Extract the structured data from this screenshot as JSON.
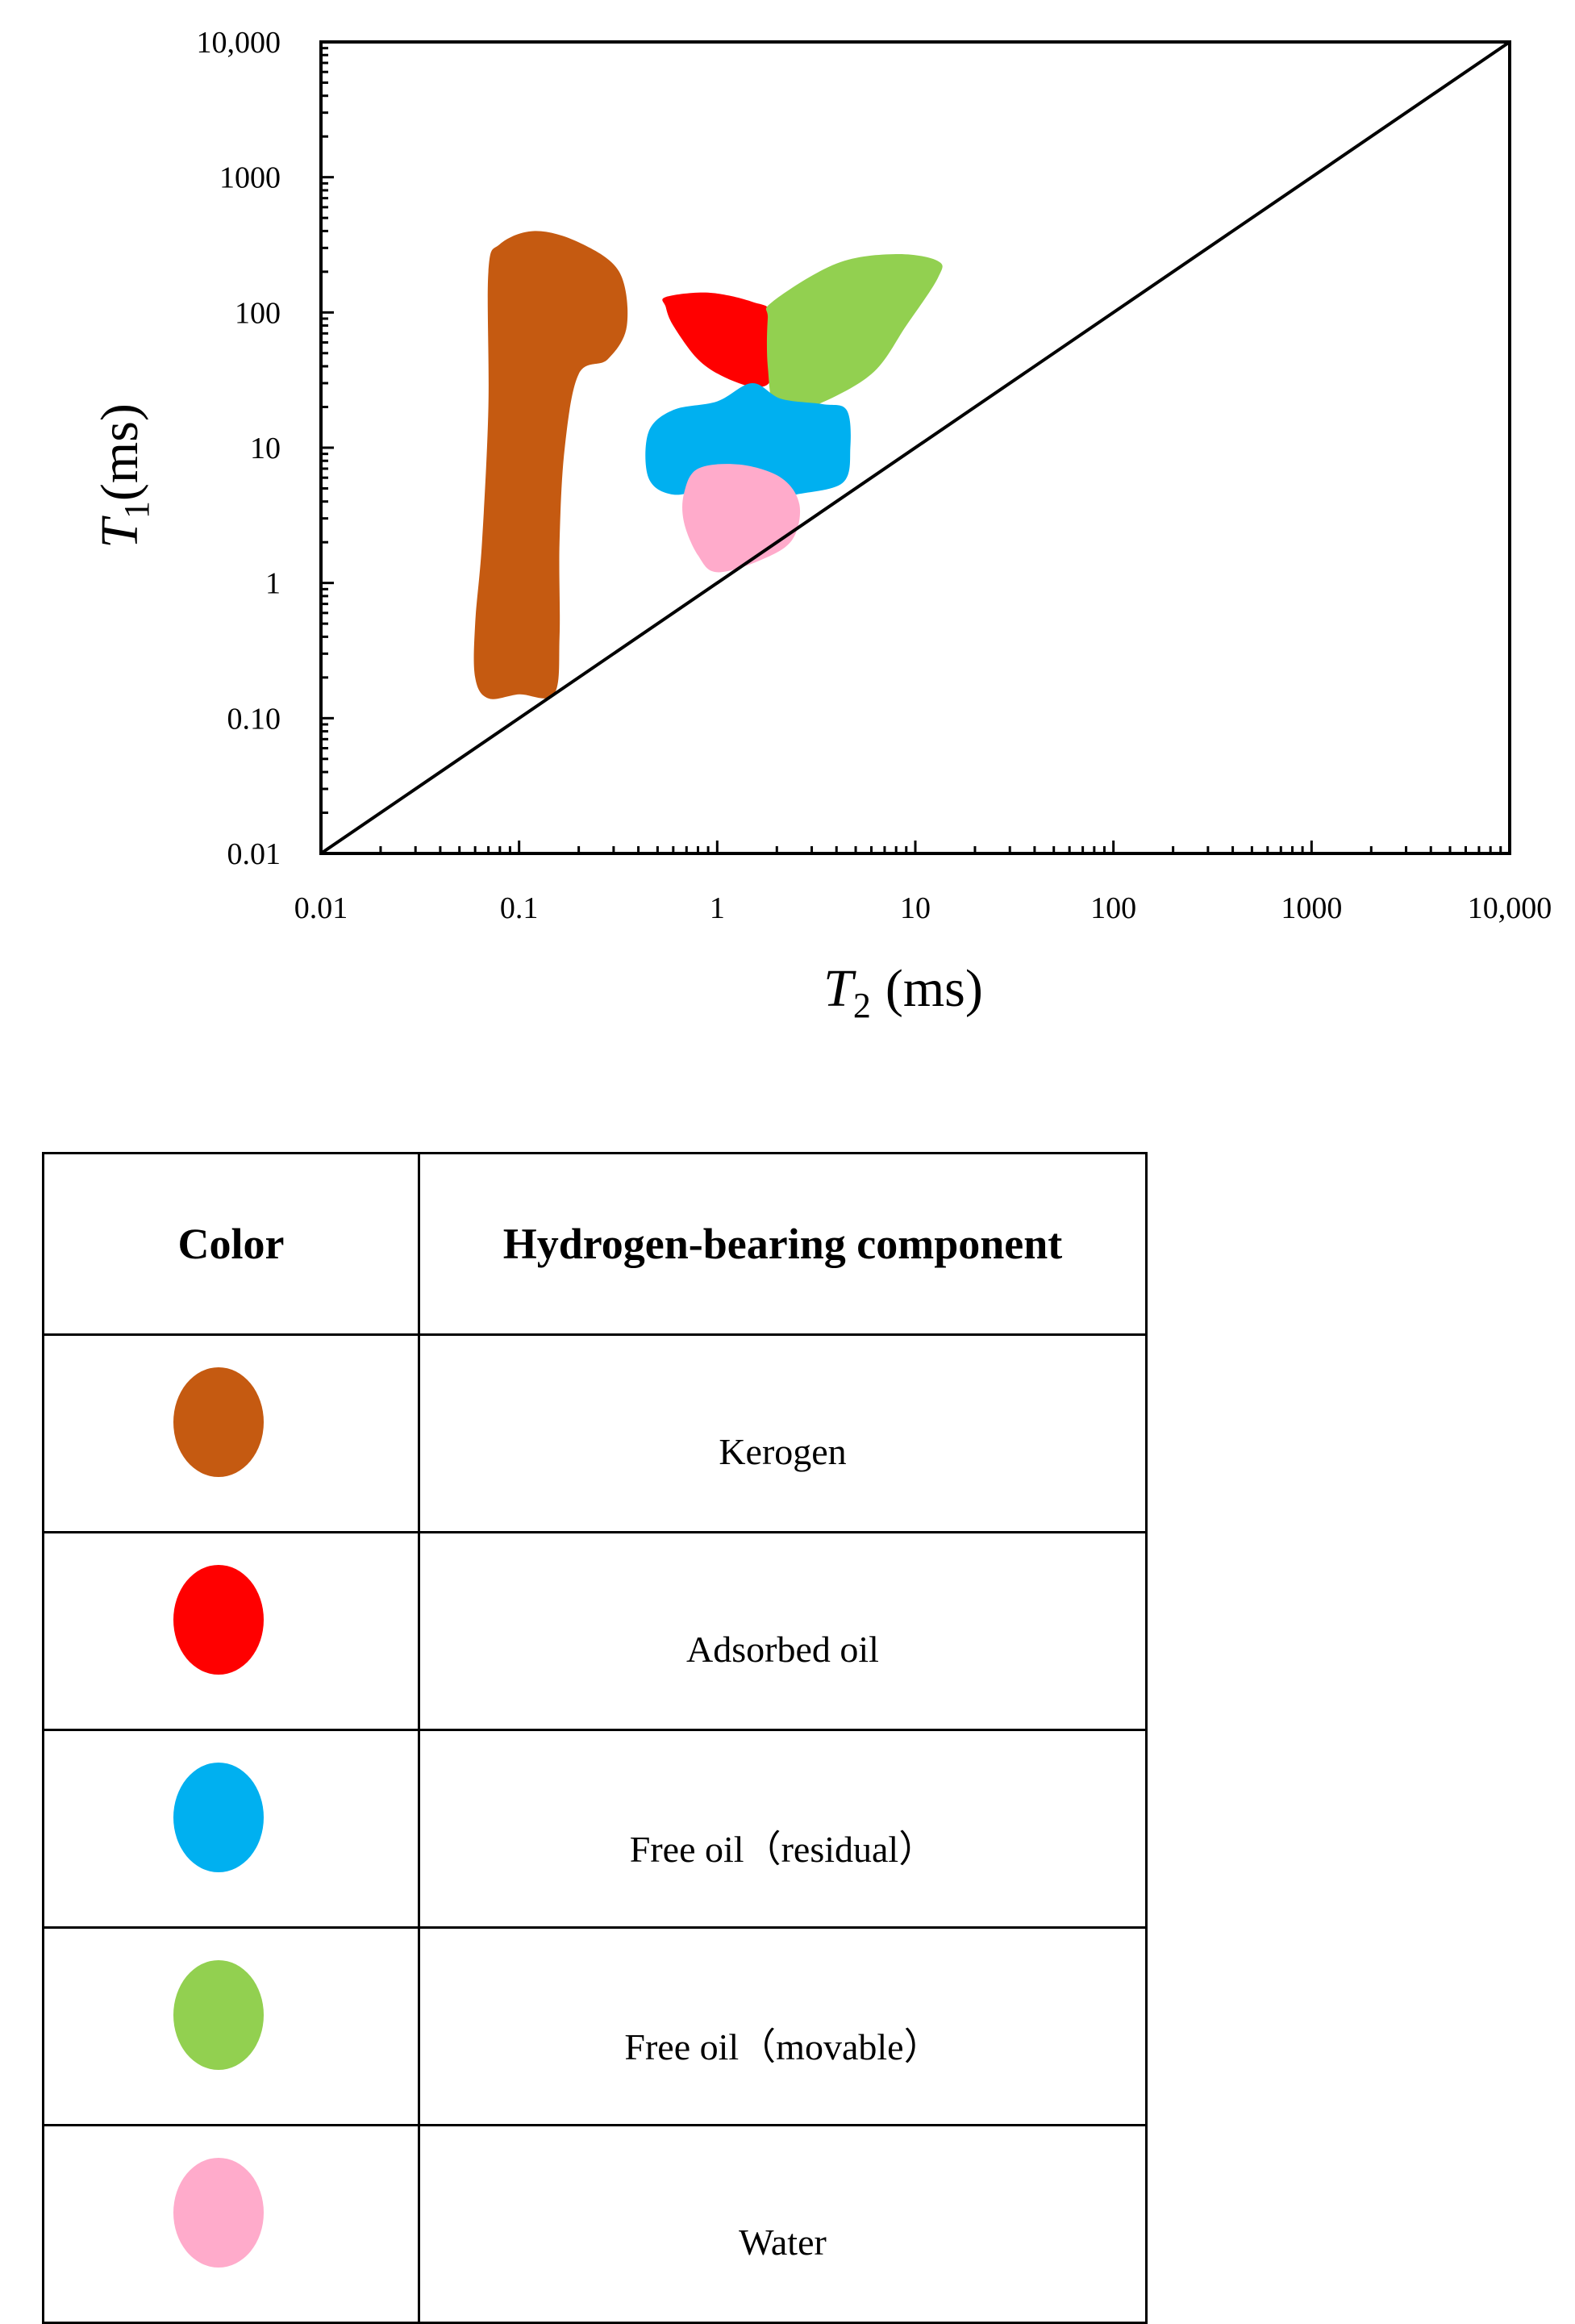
{
  "chart_data": {
    "type": "scatter",
    "title": "",
    "xlabel": "T2 (ms)",
    "ylabel": "T1(ms)",
    "xlabel_parts": {
      "symbol": "T",
      "sub": "2",
      "unit": "(ms)"
    },
    "ylabel_parts": {
      "symbol": "T",
      "sub": "1",
      "unit": "(ms)"
    },
    "xscale": "log",
    "yscale": "log",
    "xlim": [
      0.01,
      10000
    ],
    "ylim": [
      0.01,
      10000
    ],
    "xticks": [
      0.01,
      0.1,
      1,
      10,
      100,
      1000,
      10000
    ],
    "yticks": [
      0.01,
      0.1,
      1,
      10,
      100,
      1000,
      10000
    ],
    "xtick_labels": [
      "0.01",
      "0.1",
      "1",
      "10",
      "100",
      "1000",
      "10,000"
    ],
    "ytick_labels": [
      "0.01",
      "0.10",
      "1",
      "10",
      "100",
      "1000",
      "10,000"
    ],
    "reference_line": {
      "name": "T1 = T2",
      "points": [
        [
          0.01,
          0.01
        ],
        [
          10000,
          10000
        ]
      ]
    },
    "series": [
      {
        "name": "Kerogen",
        "color": "#c55a11",
        "points": [
          [
            0.1,
            0.15
          ],
          [
            0.15,
            0.15
          ],
          [
            0.16,
            0.4
          ],
          [
            0.16,
            2
          ],
          [
            0.17,
            10
          ],
          [
            0.2,
            35
          ],
          [
            0.28,
            45
          ],
          [
            0.35,
            80
          ],
          [
            0.32,
            200
          ],
          [
            0.2,
            330
          ],
          [
            0.12,
            400
          ],
          [
            0.08,
            320
          ],
          [
            0.07,
            200
          ],
          [
            0.07,
            20
          ],
          [
            0.065,
            2
          ],
          [
            0.06,
            0.5
          ],
          [
            0.06,
            0.2
          ],
          [
            0.07,
            0.14
          ]
        ]
      },
      {
        "name": "Adsorbed oil",
        "color": "#ff0000",
        "points": [
          [
            0.55,
            130
          ],
          [
            0.9,
            140
          ],
          [
            1.5,
            120
          ],
          [
            1.9,
            95
          ],
          [
            1.9,
            35
          ],
          [
            1.6,
            28
          ],
          [
            1.1,
            33
          ],
          [
            0.8,
            45
          ],
          [
            0.6,
            80
          ],
          [
            0.55,
            110
          ]
        ]
      },
      {
        "name": "Free oil（movable）",
        "color": "#92d050",
        "points": [
          [
            1.9,
            120
          ],
          [
            4,
            230
          ],
          [
            8,
            270
          ],
          [
            13,
            240
          ],
          [
            13,
            180
          ],
          [
            9,
            80
          ],
          [
            6,
            35
          ],
          [
            3,
            20
          ],
          [
            2,
            18
          ],
          [
            1.8,
            40
          ],
          [
            1.8,
            90
          ]
        ]
      },
      {
        "name": "Free oil（residual）",
        "color": "#00b0f0",
        "points": [
          [
            0.45,
            13
          ],
          [
            0.6,
            19
          ],
          [
            1.0,
            22
          ],
          [
            1.5,
            30
          ],
          [
            2.1,
            23
          ],
          [
            3.4,
            21
          ],
          [
            4.5,
            19
          ],
          [
            4.7,
            10
          ],
          [
            4.3,
            5.5
          ],
          [
            2.5,
            4.5
          ],
          [
            1.6,
            4
          ],
          [
            1.0,
            5
          ],
          [
            0.6,
            4.5
          ],
          [
            0.45,
            6
          ]
        ]
      },
      {
        "name": "Water",
        "color": "#ffabcb",
        "points": [
          [
            0.8,
            7
          ],
          [
            1.3,
            7.5
          ],
          [
            2.1,
            6
          ],
          [
            2.6,
            3.8
          ],
          [
            2.4,
            2.1
          ],
          [
            1.7,
            1.5
          ],
          [
            1.0,
            1.2
          ],
          [
            0.8,
            1.6
          ],
          [
            0.68,
            2.8
          ],
          [
            0.68,
            4.6
          ]
        ]
      }
    ]
  },
  "table": {
    "headers": [
      "Color",
      "Hydrogen-bearing component"
    ],
    "rows": [
      {
        "color": "#c55a11",
        "label": "Kerogen"
      },
      {
        "color": "#ff0000",
        "label": "Adsorbed oil"
      },
      {
        "color": "#00b0f0",
        "label": "Free oil（residual）"
      },
      {
        "color": "#92d050",
        "label": "Free oil（movable）"
      },
      {
        "color": "#ffabcb",
        "label": "Water"
      }
    ]
  }
}
